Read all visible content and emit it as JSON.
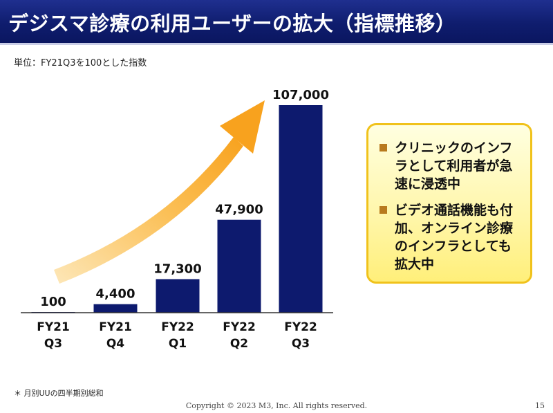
{
  "header": {
    "title": "デジスマ診療の利用ユーザーの拡大（指標推移）"
  },
  "unit_note": "単位：FY21Q3を100とした指数",
  "chart_data": {
    "type": "bar",
    "categories": [
      [
        "FY21",
        "Q3"
      ],
      [
        "FY21",
        "Q4"
      ],
      [
        "FY22",
        "Q1"
      ],
      [
        "FY22",
        "Q2"
      ],
      [
        "FY22",
        "Q3"
      ]
    ],
    "values": [
      100,
      4400,
      17300,
      47900,
      107000
    ],
    "data_labels": [
      "100",
      "4,400",
      "17,300",
      "47,900",
      "107,000"
    ],
    "ylim": [
      0,
      107000
    ],
    "bar_color": "#0d1a6e",
    "arrow_color": "#f8a21e",
    "grid": false,
    "title": "",
    "xlabel": "",
    "ylabel": ""
  },
  "callout": {
    "bullets": [
      "クリニックのインフラとして利用者が急速に浸透中",
      "ビデオ通話機能も付加、オンライン診療のインフラとしても拡大中"
    ]
  },
  "footnote": "＊ 月別UUの四半期別総和",
  "footer": {
    "copyright": "Copyright © 2023  M3, Inc.  All rights reserved.",
    "page_number": "15"
  }
}
